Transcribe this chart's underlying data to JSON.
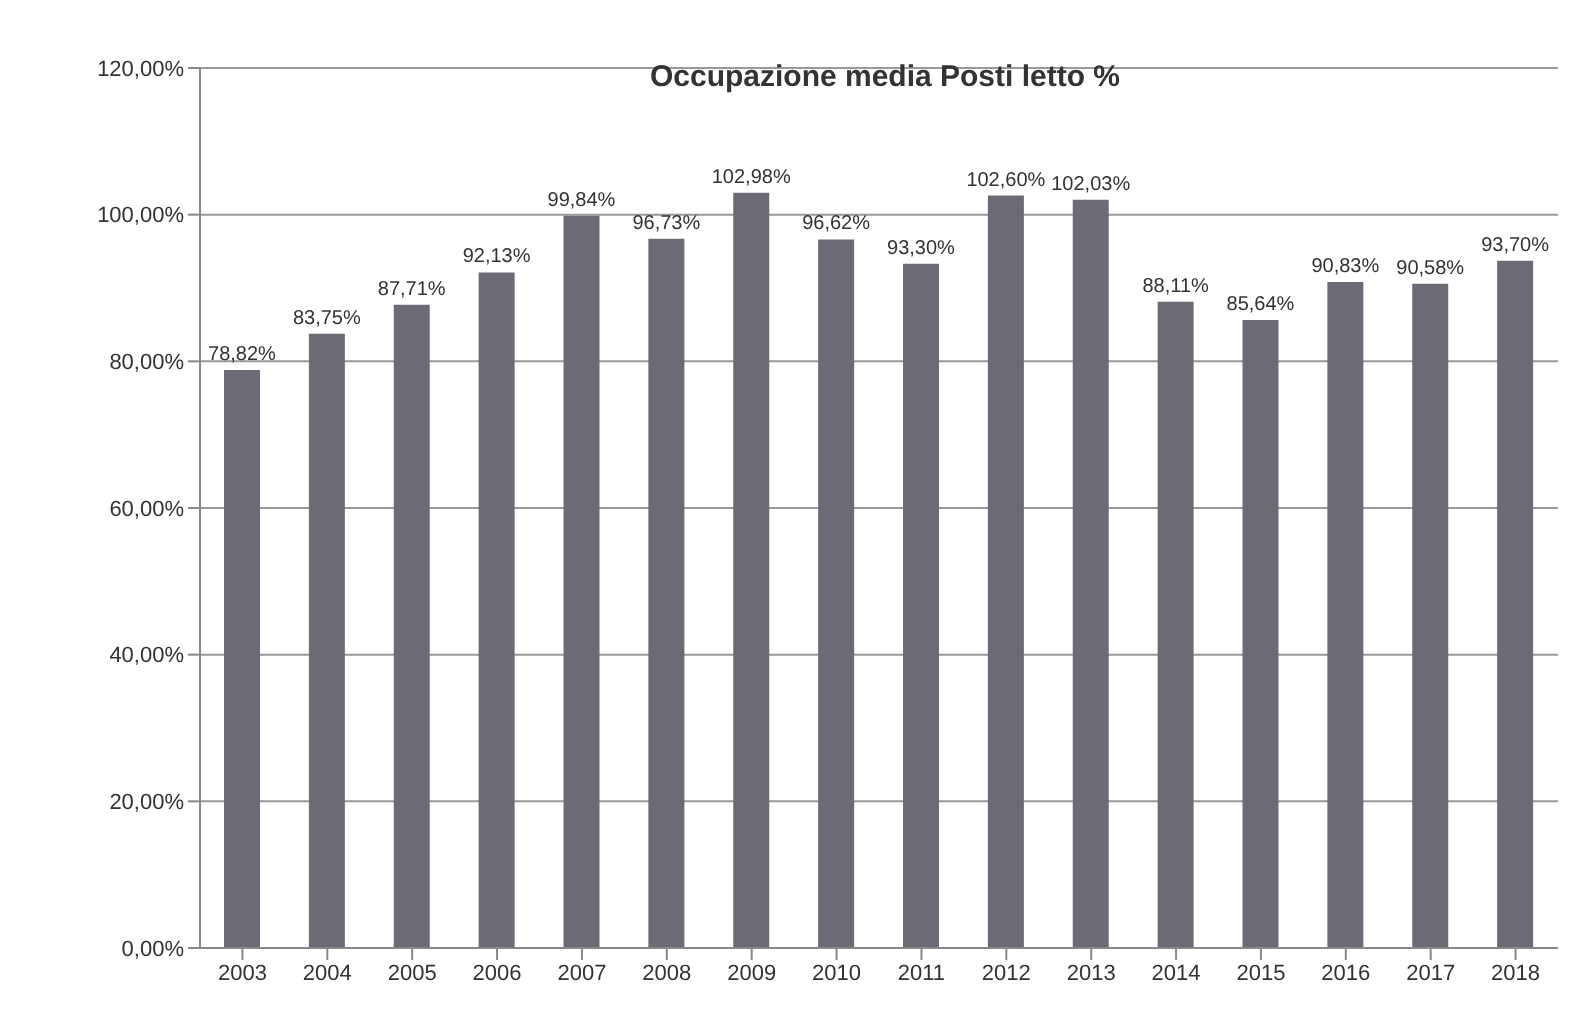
{
  "chart_data": {
    "type": "bar",
    "title": "Occupazione media Posti letto %",
    "categories": [
      "2003",
      "2004",
      "2005",
      "2006",
      "2007",
      "2008",
      "2009",
      "2010",
      "2011",
      "2012",
      "2013",
      "2014",
      "2015",
      "2016",
      "2017",
      "2018"
    ],
    "values": [
      78.82,
      83.75,
      87.71,
      92.13,
      99.84,
      96.73,
      102.98,
      96.62,
      93.3,
      102.6,
      102.03,
      88.11,
      85.64,
      90.83,
      90.58,
      93.7
    ],
    "value_labels": [
      "78,82%",
      "83,75%",
      "87,71%",
      "92,13%",
      "99,84%",
      "96,73%",
      "102,98%",
      "96,62%",
      "93,30%",
      "102,60%",
      "102,03%",
      "88,11%",
      "85,64%",
      "90,83%",
      "90,58%",
      "93,70%"
    ],
    "color": "#6b6b75",
    "ylim": [
      0,
      120
    ],
    "yticks": [
      {
        "value": 0,
        "label": "0,00%"
      },
      {
        "value": 20,
        "label": "20,00%"
      },
      {
        "value": 40,
        "label": "40,00%"
      },
      {
        "value": 60,
        "label": "60,00%"
      },
      {
        "value": 80,
        "label": "80,00%"
      },
      {
        "value": 100,
        "label": "100,00%"
      },
      {
        "value": 120,
        "label": "120,00%"
      }
    ],
    "grid": "y"
  }
}
